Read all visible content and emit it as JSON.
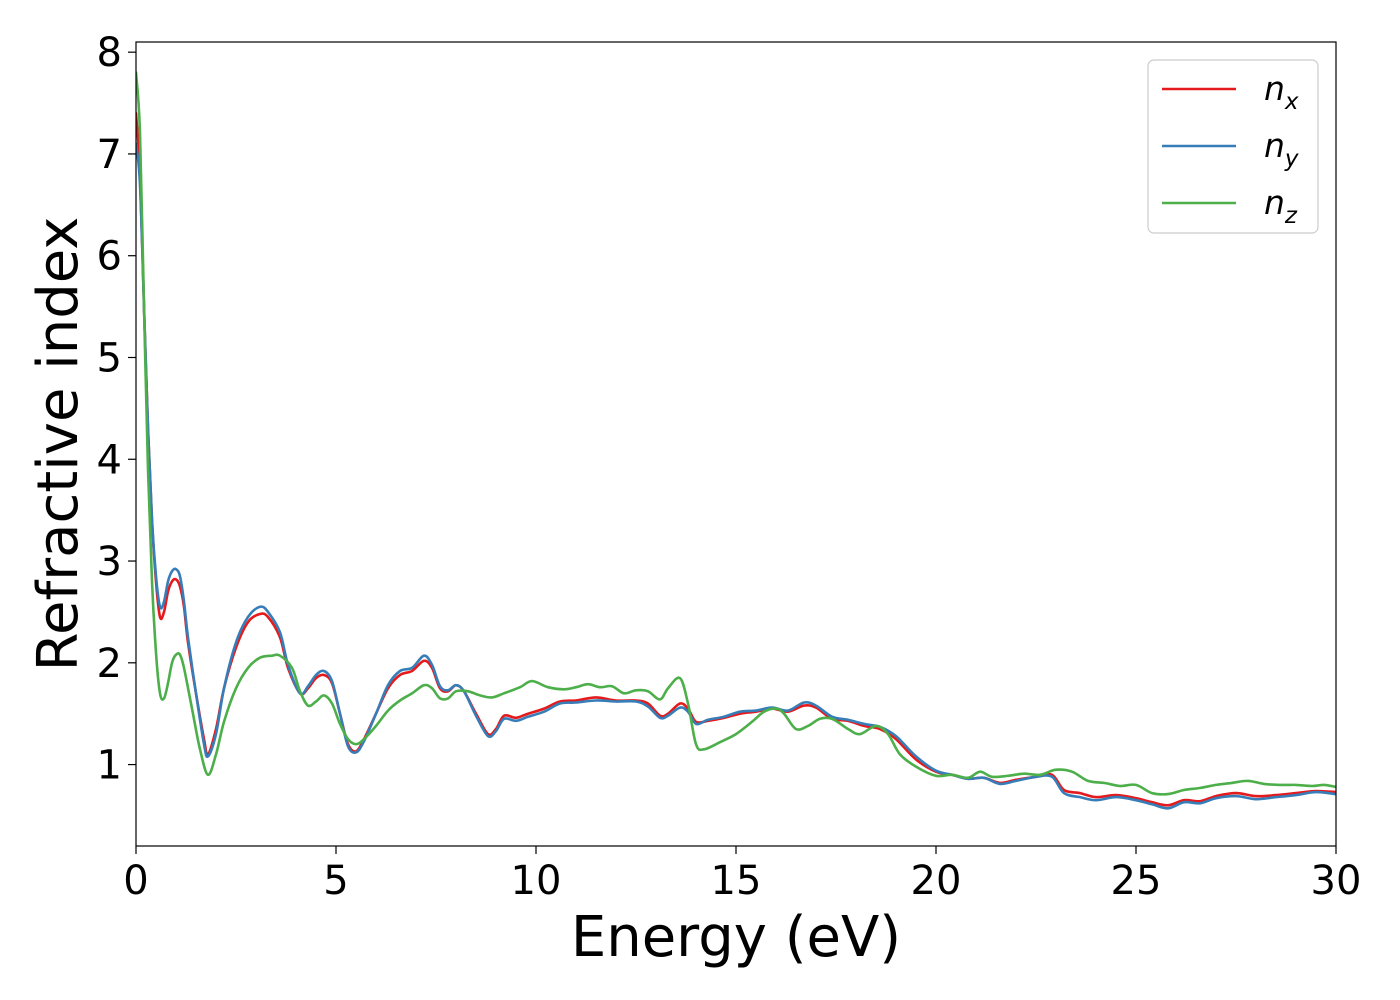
{
  "chart_data": {
    "type": "line",
    "title": "",
    "xlabel": "Energy (eV)",
    "ylabel": "Refractive index",
    "xlim": [
      0,
      30
    ],
    "ylim": [
      0.2,
      8.1
    ],
    "xticks": [
      0,
      5,
      10,
      15,
      20,
      25,
      30
    ],
    "yticks": [
      1,
      2,
      3,
      4,
      5,
      6,
      7,
      8
    ],
    "grid": false,
    "legend_position": "top-right",
    "series": [
      {
        "name": "n",
        "subscript": "x",
        "color": "#e41a1c",
        "points": [
          [
            0,
            7.4
          ],
          [
            0.1,
            6.8
          ],
          [
            0.2,
            5.5
          ],
          [
            0.3,
            4.3
          ],
          [
            0.4,
            3.4
          ],
          [
            0.5,
            2.8
          ],
          [
            0.6,
            2.45
          ],
          [
            0.7,
            2.5
          ],
          [
            0.8,
            2.7
          ],
          [
            0.9,
            2.8
          ],
          [
            1.0,
            2.82
          ],
          [
            1.1,
            2.75
          ],
          [
            1.2,
            2.55
          ],
          [
            1.3,
            2.2
          ],
          [
            1.5,
            1.7
          ],
          [
            1.7,
            1.25
          ],
          [
            1.8,
            1.1
          ],
          [
            2.0,
            1.35
          ],
          [
            2.2,
            1.75
          ],
          [
            2.5,
            2.15
          ],
          [
            2.8,
            2.4
          ],
          [
            3.1,
            2.48
          ],
          [
            3.3,
            2.45
          ],
          [
            3.6,
            2.25
          ],
          [
            3.8,
            1.95
          ],
          [
            4.1,
            1.7
          ],
          [
            4.3,
            1.75
          ],
          [
            4.5,
            1.85
          ],
          [
            4.7,
            1.88
          ],
          [
            4.9,
            1.8
          ],
          [
            5.1,
            1.5
          ],
          [
            5.3,
            1.2
          ],
          [
            5.5,
            1.13
          ],
          [
            5.7,
            1.25
          ],
          [
            6.0,
            1.5
          ],
          [
            6.3,
            1.75
          ],
          [
            6.6,
            1.88
          ],
          [
            6.9,
            1.92
          ],
          [
            7.2,
            2.02
          ],
          [
            7.4,
            1.95
          ],
          [
            7.6,
            1.75
          ],
          [
            7.8,
            1.72
          ],
          [
            8.0,
            1.78
          ],
          [
            8.2,
            1.72
          ],
          [
            8.5,
            1.5
          ],
          [
            8.8,
            1.3
          ],
          [
            9.0,
            1.35
          ],
          [
            9.2,
            1.48
          ],
          [
            9.5,
            1.46
          ],
          [
            9.8,
            1.5
          ],
          [
            10.2,
            1.55
          ],
          [
            10.6,
            1.62
          ],
          [
            11.0,
            1.63
          ],
          [
            11.5,
            1.66
          ],
          [
            12.0,
            1.63
          ],
          [
            12.5,
            1.63
          ],
          [
            12.8,
            1.6
          ],
          [
            13.1,
            1.48
          ],
          [
            13.3,
            1.5
          ],
          [
            13.6,
            1.6
          ],
          [
            13.8,
            1.55
          ],
          [
            14.0,
            1.42
          ],
          [
            14.3,
            1.43
          ],
          [
            14.7,
            1.46
          ],
          [
            15.1,
            1.5
          ],
          [
            15.5,
            1.52
          ],
          [
            15.9,
            1.55
          ],
          [
            16.3,
            1.52
          ],
          [
            16.7,
            1.58
          ],
          [
            17.0,
            1.56
          ],
          [
            17.4,
            1.45
          ],
          [
            17.8,
            1.43
          ],
          [
            18.2,
            1.38
          ],
          [
            18.6,
            1.35
          ],
          [
            19.0,
            1.25
          ],
          [
            19.5,
            1.05
          ],
          [
            20.0,
            0.93
          ],
          [
            20.4,
            0.9
          ],
          [
            20.8,
            0.86
          ],
          [
            21.2,
            0.87
          ],
          [
            21.6,
            0.82
          ],
          [
            22.0,
            0.85
          ],
          [
            22.5,
            0.88
          ],
          [
            22.9,
            0.9
          ],
          [
            23.2,
            0.75
          ],
          [
            23.6,
            0.72
          ],
          [
            24.0,
            0.68
          ],
          [
            24.5,
            0.7
          ],
          [
            25.0,
            0.67
          ],
          [
            25.4,
            0.63
          ],
          [
            25.8,
            0.6
          ],
          [
            26.2,
            0.65
          ],
          [
            26.6,
            0.64
          ],
          [
            27.0,
            0.69
          ],
          [
            27.5,
            0.72
          ],
          [
            28.0,
            0.69
          ],
          [
            28.5,
            0.7
          ],
          [
            29.0,
            0.72
          ],
          [
            29.5,
            0.74
          ],
          [
            30.0,
            0.73
          ]
        ]
      },
      {
        "name": "n",
        "subscript": "y",
        "color": "#377eb8",
        "points": [
          [
            0,
            7.1
          ],
          [
            0.1,
            6.7
          ],
          [
            0.2,
            5.5
          ],
          [
            0.3,
            4.3
          ],
          [
            0.4,
            3.4
          ],
          [
            0.5,
            2.85
          ],
          [
            0.6,
            2.55
          ],
          [
            0.7,
            2.6
          ],
          [
            0.8,
            2.8
          ],
          [
            0.9,
            2.9
          ],
          [
            1.0,
            2.92
          ],
          [
            1.1,
            2.85
          ],
          [
            1.2,
            2.6
          ],
          [
            1.3,
            2.25
          ],
          [
            1.5,
            1.7
          ],
          [
            1.7,
            1.2
          ],
          [
            1.8,
            1.08
          ],
          [
            2.0,
            1.3
          ],
          [
            2.2,
            1.75
          ],
          [
            2.5,
            2.2
          ],
          [
            2.8,
            2.45
          ],
          [
            3.1,
            2.55
          ],
          [
            3.3,
            2.5
          ],
          [
            3.6,
            2.3
          ],
          [
            3.8,
            1.98
          ],
          [
            4.1,
            1.7
          ],
          [
            4.3,
            1.77
          ],
          [
            4.5,
            1.88
          ],
          [
            4.7,
            1.92
          ],
          [
            4.9,
            1.82
          ],
          [
            5.1,
            1.5
          ],
          [
            5.3,
            1.18
          ],
          [
            5.5,
            1.12
          ],
          [
            5.7,
            1.23
          ],
          [
            6.0,
            1.5
          ],
          [
            6.3,
            1.78
          ],
          [
            6.6,
            1.92
          ],
          [
            6.9,
            1.95
          ],
          [
            7.2,
            2.07
          ],
          [
            7.4,
            1.98
          ],
          [
            7.6,
            1.77
          ],
          [
            7.8,
            1.73
          ],
          [
            8.0,
            1.78
          ],
          [
            8.2,
            1.72
          ],
          [
            8.5,
            1.48
          ],
          [
            8.8,
            1.28
          ],
          [
            9.0,
            1.33
          ],
          [
            9.2,
            1.45
          ],
          [
            9.5,
            1.43
          ],
          [
            9.8,
            1.47
          ],
          [
            10.2,
            1.52
          ],
          [
            10.6,
            1.6
          ],
          [
            11.0,
            1.61
          ],
          [
            11.5,
            1.63
          ],
          [
            12.0,
            1.62
          ],
          [
            12.5,
            1.62
          ],
          [
            12.8,
            1.57
          ],
          [
            13.1,
            1.46
          ],
          [
            13.3,
            1.48
          ],
          [
            13.6,
            1.56
          ],
          [
            13.8,
            1.52
          ],
          [
            14.0,
            1.4
          ],
          [
            14.3,
            1.44
          ],
          [
            14.7,
            1.47
          ],
          [
            15.1,
            1.52
          ],
          [
            15.5,
            1.53
          ],
          [
            15.9,
            1.56
          ],
          [
            16.3,
            1.53
          ],
          [
            16.7,
            1.61
          ],
          [
            17.0,
            1.58
          ],
          [
            17.4,
            1.47
          ],
          [
            17.8,
            1.44
          ],
          [
            18.2,
            1.4
          ],
          [
            18.6,
            1.37
          ],
          [
            19.0,
            1.28
          ],
          [
            19.5,
            1.08
          ],
          [
            20.0,
            0.94
          ],
          [
            20.4,
            0.9
          ],
          [
            20.8,
            0.86
          ],
          [
            21.2,
            0.87
          ],
          [
            21.6,
            0.81
          ],
          [
            22.0,
            0.84
          ],
          [
            22.5,
            0.88
          ],
          [
            22.9,
            0.88
          ],
          [
            23.2,
            0.72
          ],
          [
            23.6,
            0.68
          ],
          [
            24.0,
            0.65
          ],
          [
            24.5,
            0.68
          ],
          [
            25.0,
            0.65
          ],
          [
            25.4,
            0.61
          ],
          [
            25.8,
            0.57
          ],
          [
            26.2,
            0.63
          ],
          [
            26.6,
            0.62
          ],
          [
            27.0,
            0.67
          ],
          [
            27.5,
            0.69
          ],
          [
            28.0,
            0.66
          ],
          [
            28.5,
            0.68
          ],
          [
            29.0,
            0.7
          ],
          [
            29.5,
            0.73
          ],
          [
            30.0,
            0.71
          ]
        ]
      },
      {
        "name": "n",
        "subscript": "z",
        "color": "#4daf4a",
        "points": [
          [
            0,
            7.8
          ],
          [
            0.1,
            7.2
          ],
          [
            0.2,
            5.5
          ],
          [
            0.3,
            3.9
          ],
          [
            0.4,
            2.8
          ],
          [
            0.5,
            2.1
          ],
          [
            0.6,
            1.7
          ],
          [
            0.7,
            1.65
          ],
          [
            0.8,
            1.8
          ],
          [
            0.9,
            2.0
          ],
          [
            1.0,
            2.08
          ],
          [
            1.1,
            2.08
          ],
          [
            1.2,
            1.95
          ],
          [
            1.4,
            1.55
          ],
          [
            1.6,
            1.15
          ],
          [
            1.8,
            0.9
          ],
          [
            2.0,
            1.1
          ],
          [
            2.2,
            1.42
          ],
          [
            2.5,
            1.75
          ],
          [
            2.8,
            1.95
          ],
          [
            3.1,
            2.05
          ],
          [
            3.4,
            2.07
          ],
          [
            3.6,
            2.07
          ],
          [
            3.9,
            1.95
          ],
          [
            4.1,
            1.72
          ],
          [
            4.3,
            1.58
          ],
          [
            4.5,
            1.62
          ],
          [
            4.7,
            1.68
          ],
          [
            4.9,
            1.6
          ],
          [
            5.1,
            1.4
          ],
          [
            5.3,
            1.25
          ],
          [
            5.5,
            1.2
          ],
          [
            5.7,
            1.25
          ],
          [
            6.0,
            1.38
          ],
          [
            6.3,
            1.53
          ],
          [
            6.6,
            1.63
          ],
          [
            6.9,
            1.7
          ],
          [
            7.2,
            1.78
          ],
          [
            7.4,
            1.75
          ],
          [
            7.6,
            1.65
          ],
          [
            7.8,
            1.65
          ],
          [
            8.0,
            1.72
          ],
          [
            8.3,
            1.72
          ],
          [
            8.6,
            1.68
          ],
          [
            8.9,
            1.66
          ],
          [
            9.2,
            1.7
          ],
          [
            9.6,
            1.76
          ],
          [
            9.9,
            1.82
          ],
          [
            10.3,
            1.76
          ],
          [
            10.7,
            1.74
          ],
          [
            11.0,
            1.76
          ],
          [
            11.3,
            1.79
          ],
          [
            11.6,
            1.76
          ],
          [
            11.9,
            1.77
          ],
          [
            12.2,
            1.7
          ],
          [
            12.5,
            1.73
          ],
          [
            12.8,
            1.72
          ],
          [
            13.1,
            1.64
          ],
          [
            13.3,
            1.75
          ],
          [
            13.6,
            1.85
          ],
          [
            13.8,
            1.6
          ],
          [
            14.0,
            1.2
          ],
          [
            14.2,
            1.15
          ],
          [
            14.6,
            1.22
          ],
          [
            15.0,
            1.3
          ],
          [
            15.4,
            1.42
          ],
          [
            15.7,
            1.52
          ],
          [
            16.0,
            1.55
          ],
          [
            16.2,
            1.5
          ],
          [
            16.5,
            1.35
          ],
          [
            16.8,
            1.38
          ],
          [
            17.1,
            1.45
          ],
          [
            17.4,
            1.45
          ],
          [
            17.8,
            1.35
          ],
          [
            18.1,
            1.3
          ],
          [
            18.5,
            1.38
          ],
          [
            18.8,
            1.3
          ],
          [
            19.1,
            1.1
          ],
          [
            19.5,
            0.98
          ],
          [
            20.0,
            0.89
          ],
          [
            20.4,
            0.9
          ],
          [
            20.8,
            0.87
          ],
          [
            21.1,
            0.93
          ],
          [
            21.4,
            0.88
          ],
          [
            21.8,
            0.89
          ],
          [
            22.2,
            0.91
          ],
          [
            22.6,
            0.9
          ],
          [
            23.0,
            0.95
          ],
          [
            23.4,
            0.93
          ],
          [
            23.8,
            0.84
          ],
          [
            24.2,
            0.82
          ],
          [
            24.6,
            0.79
          ],
          [
            25.0,
            0.8
          ],
          [
            25.4,
            0.72
          ],
          [
            25.8,
            0.71
          ],
          [
            26.2,
            0.75
          ],
          [
            26.6,
            0.77
          ],
          [
            27.0,
            0.8
          ],
          [
            27.4,
            0.82
          ],
          [
            27.8,
            0.84
          ],
          [
            28.2,
            0.81
          ],
          [
            28.6,
            0.8
          ],
          [
            29.0,
            0.8
          ],
          [
            29.4,
            0.79
          ],
          [
            29.7,
            0.8
          ],
          [
            30.0,
            0.78
          ]
        ]
      }
    ]
  }
}
